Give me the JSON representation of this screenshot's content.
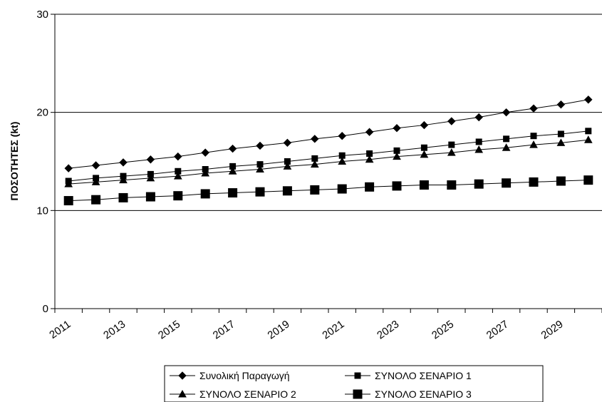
{
  "chart_data": {
    "type": "line",
    "title": "",
    "xlabel": "",
    "ylabel": "ΠΟΣΟΤΗΤΕΣ (kt)",
    "ylim": [
      0,
      30
    ],
    "yticks": [
      0,
      10,
      20,
      30
    ],
    "grid": "horizontal",
    "legend_position": "bottom",
    "x": [
      2011,
      2012,
      2013,
      2014,
      2015,
      2016,
      2017,
      2018,
      2019,
      2020,
      2021,
      2022,
      2023,
      2024,
      2025,
      2026,
      2027,
      2028,
      2029,
      2030
    ],
    "xtick_labels": [
      "2011",
      "2013",
      "2015",
      "2017",
      "2019",
      "2021",
      "2023",
      "2025",
      "2027",
      "2029"
    ],
    "series": [
      {
        "name": "Συνολική Παραγωγή",
        "marker": "diamond",
        "color": "#000000",
        "values": [
          14.3,
          14.6,
          14.9,
          15.2,
          15.5,
          15.9,
          16.3,
          16.6,
          16.9,
          17.3,
          17.6,
          18.0,
          18.4,
          18.7,
          19.1,
          19.5,
          20.0,
          20.4,
          20.8,
          21.3
        ]
      },
      {
        "name": "ΣΥΝΟΛΟ ΣΕΝΑΡΙΟ 1",
        "marker": "square-small",
        "color": "#000000",
        "values": [
          13.0,
          13.3,
          13.5,
          13.7,
          14.0,
          14.2,
          14.5,
          14.7,
          15.0,
          15.3,
          15.6,
          15.8,
          16.1,
          16.4,
          16.7,
          17.0,
          17.3,
          17.6,
          17.8,
          18.1
        ]
      },
      {
        "name": "ΣΥΝΟΛΟ ΣΕΝΑΡΙΟ 2",
        "marker": "triangle",
        "color": "#000000",
        "values": [
          12.7,
          12.9,
          13.1,
          13.3,
          13.5,
          13.8,
          14.0,
          14.2,
          14.5,
          14.7,
          15.0,
          15.2,
          15.5,
          15.7,
          15.9,
          16.2,
          16.4,
          16.7,
          16.9,
          17.2
        ]
      },
      {
        "name": "ΣΥΝΟΛΟ ΣΕΝΑΡΙΟ 3",
        "marker": "square-large",
        "color": "#000000",
        "values": [
          11.0,
          11.1,
          11.3,
          11.4,
          11.5,
          11.7,
          11.8,
          11.9,
          12.0,
          12.1,
          12.2,
          12.4,
          12.5,
          12.6,
          12.6,
          12.7,
          12.8,
          12.9,
          13.0,
          13.1
        ]
      }
    ]
  }
}
